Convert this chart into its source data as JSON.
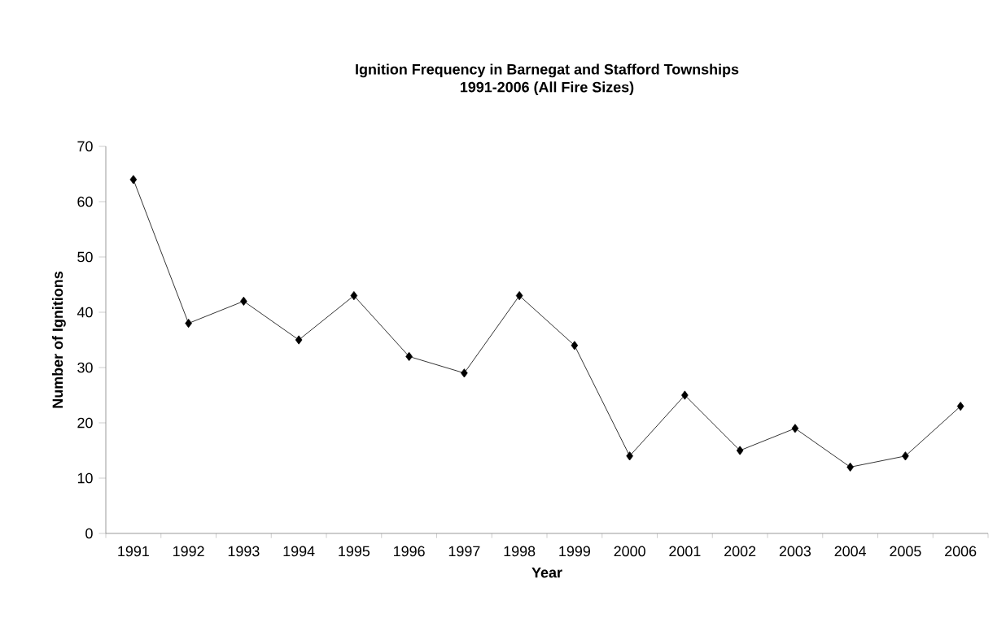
{
  "chart_data": {
    "type": "line",
    "title": "Ignition Frequency in Barnegat and Stafford Townships",
    "subtitle": "1991-2006 (All Fire Sizes)",
    "xlabel": "Year",
    "ylabel": "Number of Ignitions",
    "categories": [
      "1991",
      "1992",
      "1993",
      "1994",
      "1995",
      "1996",
      "1997",
      "1998",
      "1999",
      "2000",
      "2001",
      "2002",
      "2003",
      "2004",
      "2005",
      "2006"
    ],
    "series": [
      {
        "color": "#000000",
        "values": [
          64,
          38,
          42,
          35,
          43,
          32,
          29,
          43,
          34,
          14,
          25,
          15,
          19,
          12,
          14,
          23
        ]
      }
    ],
    "ylim": [
      0,
      70
    ],
    "yticks": [
      0,
      10,
      20,
      30,
      40,
      50,
      60,
      70
    ],
    "grid": false,
    "marker": "diamond",
    "line_style": "solid"
  }
}
